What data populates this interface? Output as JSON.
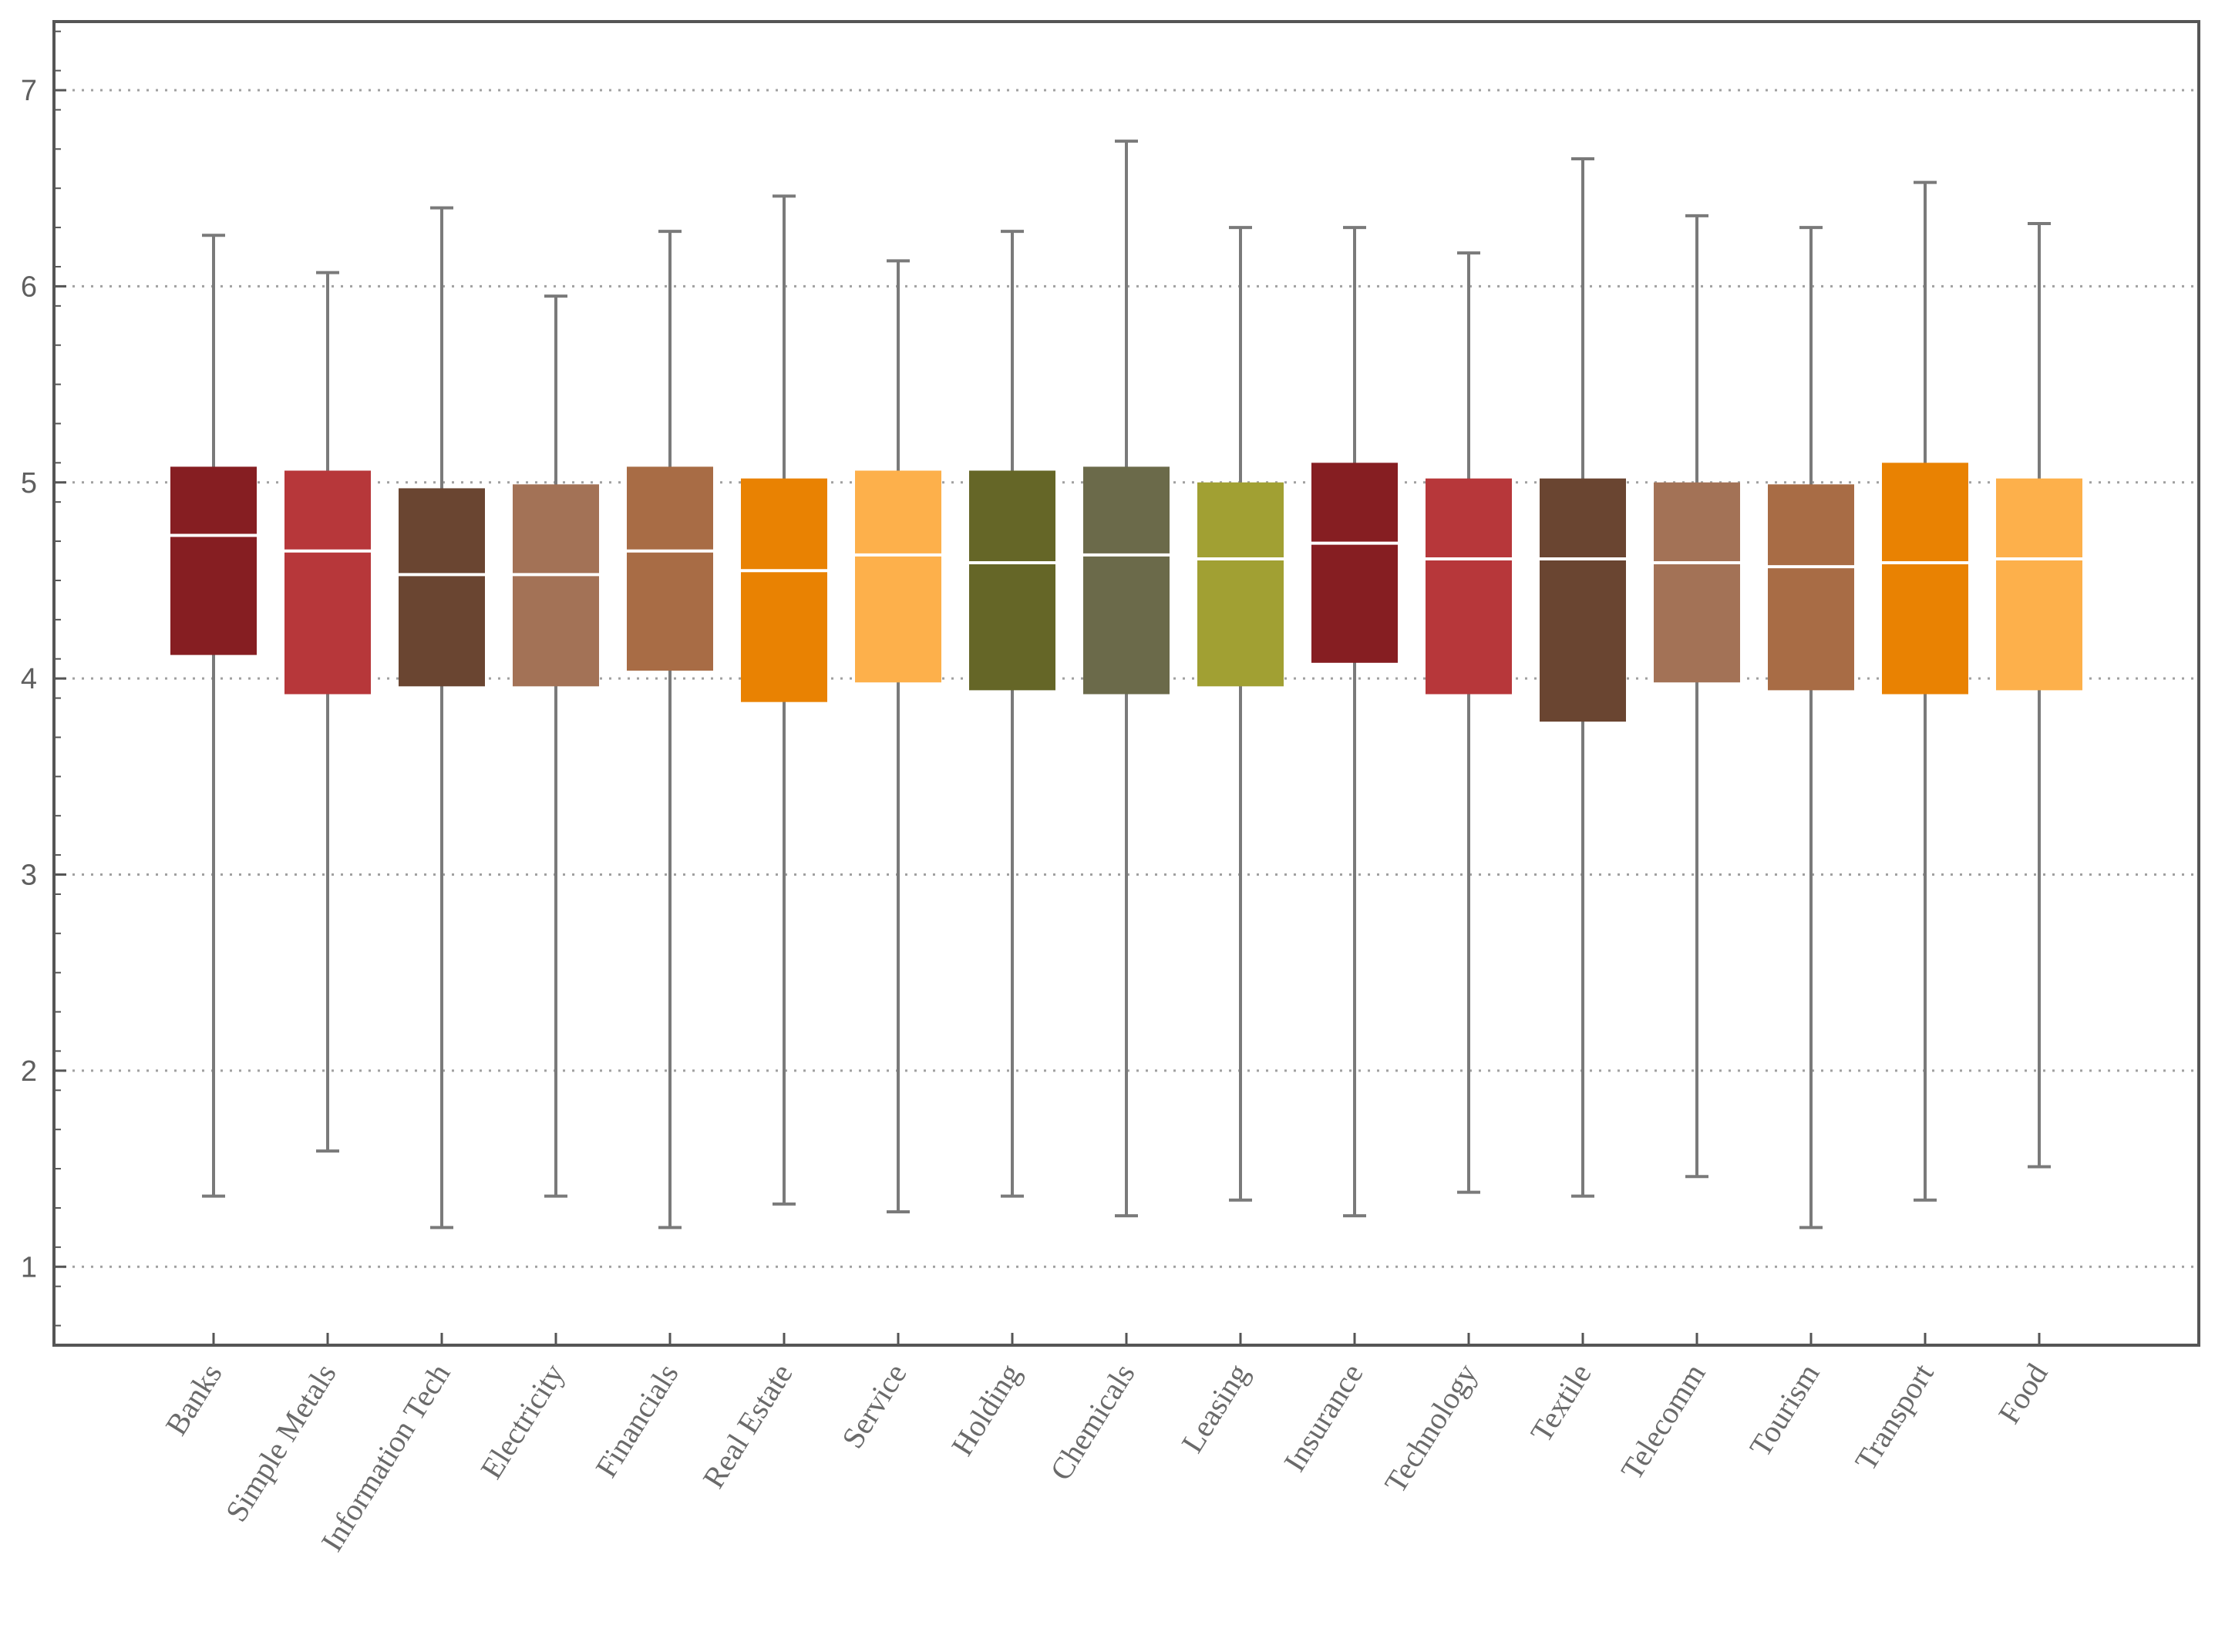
{
  "chart_data": {
    "type": "box",
    "title": "",
    "xlabel": "",
    "ylabel": "",
    "ylim": [
      0.6,
      7.35
    ],
    "yticks": [
      1,
      2,
      3,
      4,
      5,
      6,
      7
    ],
    "grid": "horizontal dotted at each y tick",
    "frame": true,
    "categories": [
      "Banks",
      "Simple Metals",
      "Information Tech",
      "Electricity",
      "Financials",
      "Real Estate",
      "Service",
      "Holding",
      "Chemicals",
      "Leasing",
      "Insurance",
      "Technology",
      "Textile",
      "Telecomm",
      "Tourism",
      "Transport",
      "Food"
    ],
    "series": [
      {
        "category": "Banks",
        "min": 1.36,
        "q1": 4.12,
        "median": 4.73,
        "q3": 5.08,
        "max": 6.26,
        "color": "#861e22"
      },
      {
        "category": "Simple Metals",
        "min": 1.59,
        "q1": 3.92,
        "median": 4.65,
        "q3": 5.06,
        "max": 6.07,
        "color": "#b7373a"
      },
      {
        "category": "Information Tech",
        "min": 1.2,
        "q1": 3.96,
        "median": 4.53,
        "q3": 4.97,
        "max": 6.4,
        "color": "#6a4531"
      },
      {
        "category": "Electricity",
        "min": 1.36,
        "q1": 3.96,
        "median": 4.53,
        "q3": 4.99,
        "max": 5.95,
        "color": "#a37256"
      },
      {
        "category": "Financials",
        "min": 1.2,
        "q1": 4.04,
        "median": 4.65,
        "q3": 5.08,
        "max": 6.28,
        "color": "#a86c45"
      },
      {
        "category": "Real Estate",
        "min": 1.32,
        "q1": 3.88,
        "median": 4.55,
        "q3": 5.02,
        "max": 6.46,
        "color": "#e98202"
      },
      {
        "category": "Service",
        "min": 1.28,
        "q1": 3.98,
        "median": 4.63,
        "q3": 5.06,
        "max": 6.13,
        "color": "#fdb04b"
      },
      {
        "category": "Holding",
        "min": 1.36,
        "q1": 3.94,
        "median": 4.59,
        "q3": 5.06,
        "max": 6.28,
        "color": "#656627"
      },
      {
        "category": "Chemicals",
        "min": 1.26,
        "q1": 3.92,
        "median": 4.63,
        "q3": 5.08,
        "max": 6.74,
        "color": "#6b6a4a"
      },
      {
        "category": "Leasing",
        "min": 1.34,
        "q1": 3.96,
        "median": 4.61,
        "q3": 5.0,
        "max": 6.3,
        "color": "#a1a033"
      },
      {
        "category": "Insurance",
        "min": 1.26,
        "q1": 4.08,
        "median": 4.69,
        "q3": 5.1,
        "max": 6.3,
        "color": "#861e22"
      },
      {
        "category": "Technology",
        "min": 1.38,
        "q1": 3.92,
        "median": 4.61,
        "q3": 5.02,
        "max": 6.17,
        "color": "#b7373a"
      },
      {
        "category": "Textile",
        "min": 1.36,
        "q1": 3.78,
        "median": 4.61,
        "q3": 5.02,
        "max": 6.65,
        "color": "#6a4531"
      },
      {
        "category": "Telecomm",
        "min": 1.46,
        "q1": 3.98,
        "median": 4.59,
        "q3": 5.0,
        "max": 6.36,
        "color": "#a37256"
      },
      {
        "category": "Tourism",
        "min": 1.2,
        "q1": 3.94,
        "median": 4.57,
        "q3": 4.99,
        "max": 6.3,
        "color": "#a86c45"
      },
      {
        "category": "Transport",
        "min": 1.34,
        "q1": 3.92,
        "median": 4.59,
        "q3": 5.1,
        "max": 6.53,
        "color": "#e98202"
      },
      {
        "category": "Food",
        "min": 1.51,
        "q1": 3.94,
        "median": 4.61,
        "q3": 5.02,
        "max": 6.32,
        "color": "#fdb04b"
      }
    ],
    "style": {
      "whisker_color": "#7a7a7a",
      "median_color": "#ffffff",
      "grid_color": "#a0a0a0",
      "frame_color": "#555555",
      "tick_label_color": "#5f5f5f",
      "category_label_color": "#6a6a6a"
    }
  }
}
